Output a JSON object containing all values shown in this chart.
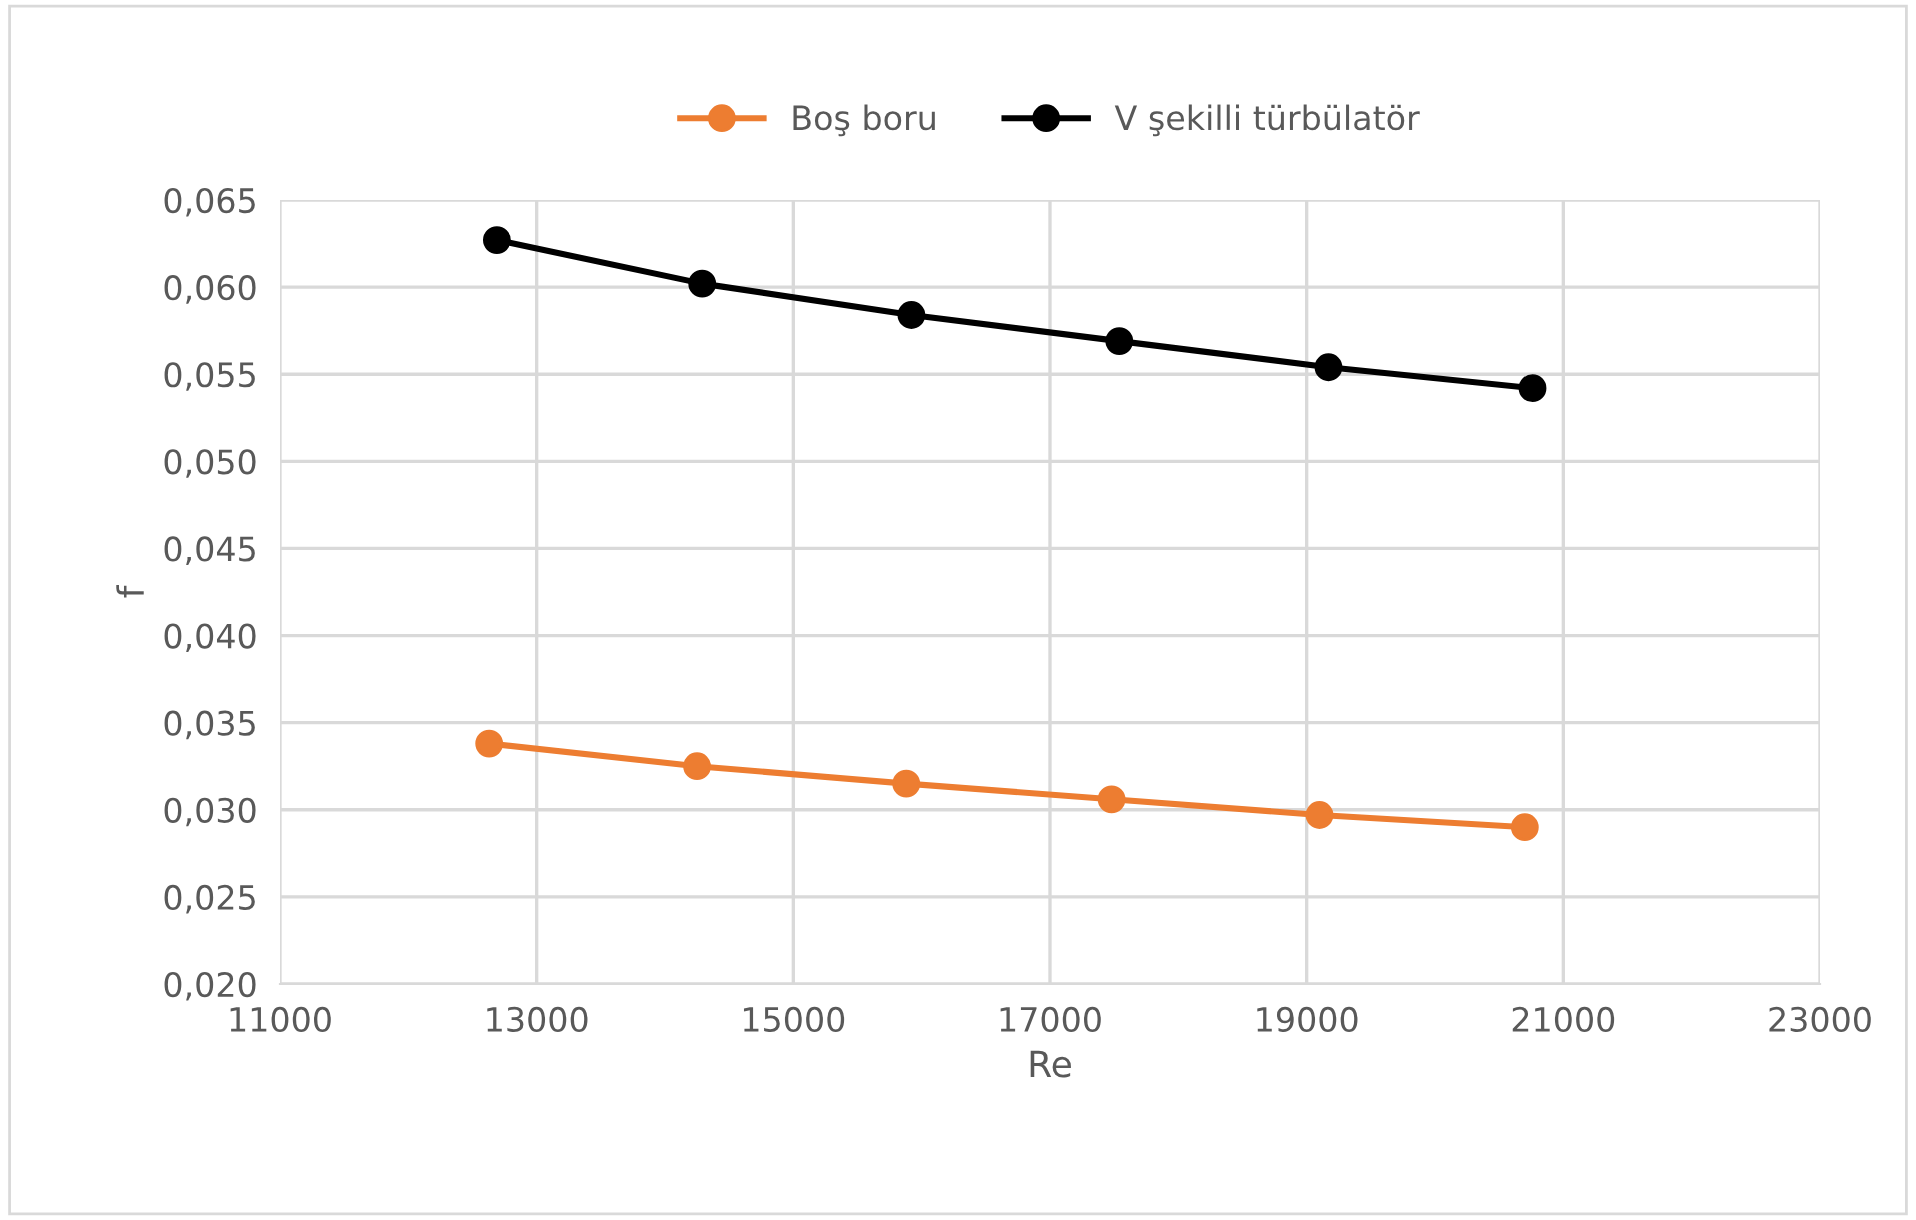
{
  "chart_data": {
    "type": "line",
    "xlabel": "Re",
    "ylabel": "f",
    "series": [
      {
        "name": "Boş boru",
        "color": "#ed7d31",
        "x": [
          12630,
          14250,
          15880,
          17480,
          19100,
          20700
        ],
        "values": [
          0.0338,
          0.0325,
          0.0315,
          0.0306,
          0.0297,
          0.029
        ]
      },
      {
        "name": "V şekilli türbülatör",
        "color": "#000000",
        "x": [
          12690,
          14290,
          15920,
          17540,
          19170,
          20760
        ],
        "values": [
          0.0627,
          0.0602,
          0.0584,
          0.0569,
          0.0554,
          0.0542
        ]
      }
    ],
    "xlim": [
      11000,
      23000
    ],
    "xticks": [
      11000,
      13000,
      15000,
      17000,
      19000,
      21000,
      23000
    ],
    "ylim": [
      0.02,
      0.065
    ],
    "yticks": [
      {
        "value": 0.02,
        "label": "0,020"
      },
      {
        "value": 0.025,
        "label": "0,025"
      },
      {
        "value": 0.03,
        "label": "0,030"
      },
      {
        "value": 0.035,
        "label": "0,035"
      },
      {
        "value": 0.04,
        "label": "0,040"
      },
      {
        "value": 0.045,
        "label": "0,045"
      },
      {
        "value": 0.05,
        "label": "0,050"
      },
      {
        "value": 0.055,
        "label": "0,055"
      },
      {
        "value": 0.06,
        "label": "0,060"
      },
      {
        "value": 0.065,
        "label": "0,065"
      }
    ],
    "grid": true,
    "legend": "top",
    "marker": "circle",
    "line_style": "solid"
  }
}
